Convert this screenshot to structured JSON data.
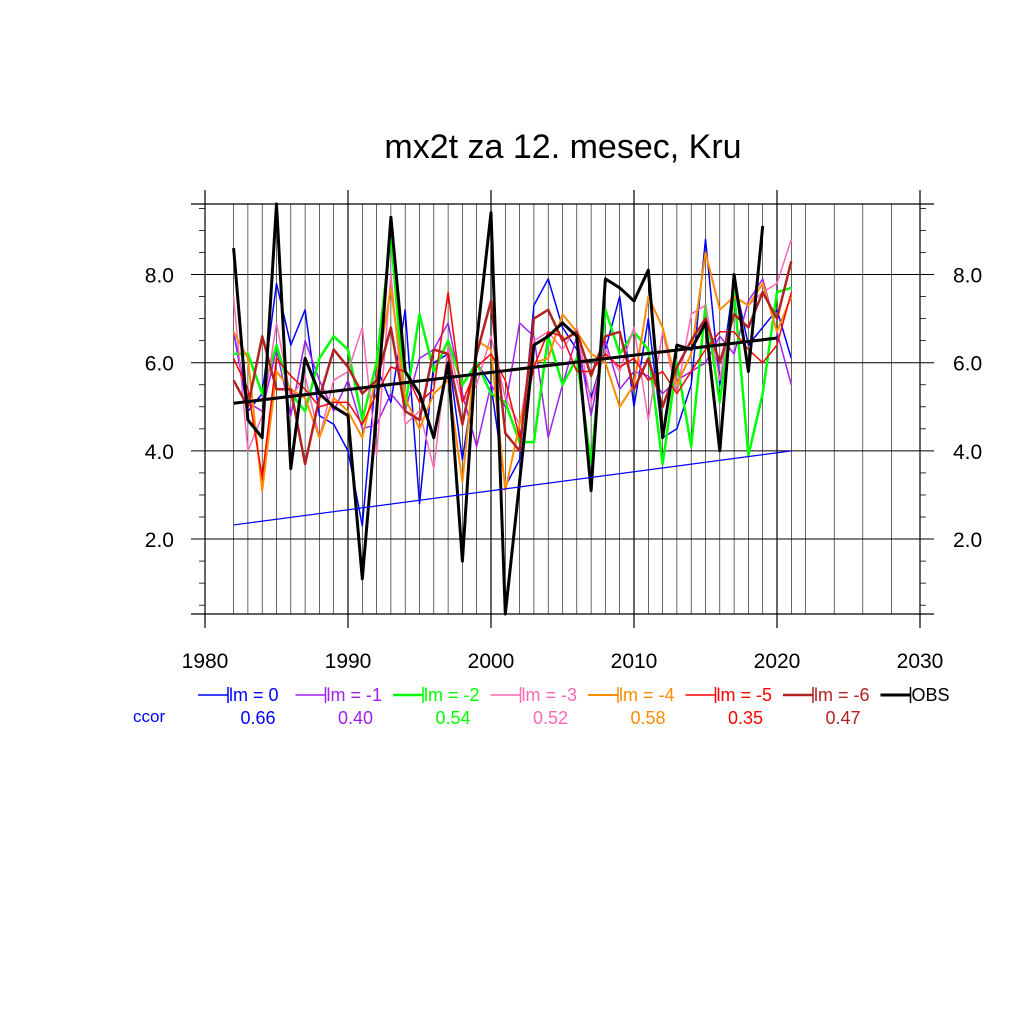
{
  "chart_data": {
    "type": "line",
    "title": "mx2t za 12. mesec, Kru",
    "xlim": [
      1980,
      2030
    ],
    "ylim": [
      0.3,
      9.6
    ],
    "xticks": [
      1980,
      1990,
      2000,
      2010,
      2020,
      2030
    ],
    "yticks": [
      2.0,
      4.0,
      6.0,
      8.0
    ],
    "ytick_labels": [
      "2.0",
      "4.0",
      "6.0",
      "8.0"
    ],
    "grid": true,
    "legend_position": "bottom",
    "ccor_label": "ccor",
    "x": [
      1982,
      1983,
      1984,
      1985,
      1986,
      1987,
      1988,
      1989,
      1990,
      1991,
      1992,
      1993,
      1994,
      1995,
      1996,
      1997,
      1998,
      1999,
      2000,
      2001,
      2002,
      2003,
      2004,
      2005,
      2006,
      2007,
      2008,
      2009,
      2010,
      2011,
      2012,
      2013,
      2014,
      2015,
      2016,
      2017,
      2018,
      2019,
      2020,
      2021
    ],
    "series": [
      {
        "name": "lm = 0",
        "ccor": "0.66",
        "color": "#0000ff",
        "width": 1.5,
        "values": [
          6.7,
          4.9,
          5.3,
          7.8,
          6.4,
          7.2,
          4.8,
          4.6,
          4.0,
          2.3,
          5.9,
          5.1,
          7.2,
          2.8,
          6.0,
          6.2,
          3.8,
          6.0,
          5.5,
          3.2,
          3.8,
          7.3,
          7.9,
          6.8,
          6.3,
          5.2,
          6.3,
          7.5,
          5.0,
          7.0,
          4.3,
          4.5,
          5.5,
          8.8,
          5.5,
          7.9,
          6.4,
          6.8,
          7.2,
          6.1
        ]
      },
      {
        "name": "lm = -1",
        "ccor": "0.40",
        "color": "#a020f0",
        "width": 1.5,
        "values": [
          6.7,
          5.1,
          4.9,
          6.3,
          4.8,
          6.5,
          5.6,
          4.9,
          5.6,
          4.5,
          4.6,
          5.3,
          4.9,
          6.1,
          6.3,
          6.9,
          5.3,
          4.1,
          5.5,
          5.0,
          6.9,
          6.6,
          4.3,
          5.5,
          6.6,
          4.8,
          6.5,
          5.4,
          5.8,
          5.7,
          5.3,
          5.6,
          5.8,
          6.0,
          6.6,
          6.2,
          7.4,
          7.9,
          6.7,
          5.5
        ]
      },
      {
        "name": "lm = -2",
        "ccor": "0.54",
        "color": "#00ff00",
        "width": 2.5,
        "values": [
          6.2,
          6.2,
          5.3,
          6.4,
          5.3,
          4.9,
          6.1,
          6.6,
          6.3,
          4.7,
          6.0,
          8.9,
          5.0,
          7.1,
          5.8,
          6.5,
          5.5,
          6.0,
          5.3,
          5.1,
          4.2,
          4.2,
          6.6,
          5.5,
          6.1,
          3.7,
          7.2,
          6.2,
          6.7,
          6.3,
          3.7,
          6.0,
          4.1,
          7.3,
          5.1,
          7.6,
          3.9,
          5.3,
          7.6,
          7.7
        ]
      },
      {
        "name": "lm = -3",
        "ccor": "0.52",
        "color": "#ff69b4",
        "width": 1.5,
        "values": [
          7.5,
          4.0,
          4.8,
          6.9,
          5.2,
          5.7,
          4.3,
          5.6,
          5.8,
          6.8,
          3.9,
          8.0,
          4.6,
          4.9,
          3.6,
          6.4,
          5.1,
          5.5,
          6.6,
          5.2,
          4.6,
          6.5,
          6.7,
          6.3,
          6.8,
          5.1,
          6.3,
          5.8,
          6.8,
          4.7,
          6.7,
          5.3,
          7.1,
          7.3,
          5.6,
          7.5,
          7.3,
          7.6,
          7.8,
          8.8
        ]
      },
      {
        "name": "lm = -4",
        "ccor": "0.58",
        "color": "#ff8c00",
        "width": 2.0,
        "values": [
          6.7,
          6.1,
          3.1,
          5.8,
          5.4,
          5.2,
          4.3,
          5.2,
          4.9,
          4.3,
          5.7,
          7.7,
          5.2,
          4.5,
          5.3,
          5.6,
          3.3,
          6.5,
          6.3,
          3.1,
          4.6,
          6.0,
          6.1,
          7.1,
          6.7,
          6.2,
          6.0,
          5.0,
          5.5,
          7.5,
          6.8,
          5.5,
          6.2,
          8.5,
          7.2,
          7.5,
          7.3,
          7.8,
          6.7,
          7.5
        ]
      },
      {
        "name": "lm = -5",
        "ccor": "0.35",
        "color": "#ff0000",
        "width": 1.5,
        "values": [
          6.1,
          5.4,
          3.4,
          6.1,
          5.7,
          5.4,
          5.0,
          5.1,
          5.1,
          4.6,
          5.3,
          5.9,
          5.8,
          5.1,
          5.4,
          7.6,
          5.1,
          5.9,
          6.2,
          5.6,
          4.3,
          5.9,
          6.7,
          6.6,
          5.8,
          5.8,
          6.2,
          5.9,
          6.1,
          5.6,
          5.8,
          5.3,
          5.8,
          6.3,
          6.7,
          6.7,
          6.3,
          6.0,
          6.4,
          7.6
        ]
      },
      {
        "name": "lm = -6",
        "ccor": "0.47",
        "color": "#b22222",
        "width": 2.5,
        "values": [
          5.6,
          5.0,
          6.6,
          5.4,
          5.4,
          3.7,
          5.2,
          6.3,
          5.9,
          5.3,
          5.6,
          6.8,
          4.9,
          4.7,
          6.3,
          6.2,
          4.6,
          6.2,
          7.4,
          4.4,
          4.0,
          7.0,
          7.2,
          6.5,
          6.7,
          5.7,
          6.6,
          6.7,
          5.4,
          6.1,
          5.0,
          5.9,
          6.5,
          7.0,
          6.0,
          7.1,
          6.8,
          7.6,
          7.0,
          8.3
        ]
      },
      {
        "name": "OBS",
        "ccor": "",
        "color": "#000000",
        "width": 3.0,
        "values": [
          8.6,
          4.7,
          4.3,
          9.6,
          3.6,
          6.1,
          5.3,
          5.0,
          4.8,
          1.1,
          4.9,
          9.3,
          5.8,
          5.3,
          4.3,
          6.0,
          1.5,
          6.5,
          9.4,
          0.3,
          3.3,
          6.4,
          6.6,
          6.9,
          6.6,
          3.1,
          7.9,
          7.7,
          7.4,
          8.1,
          4.3,
          6.4,
          6.3,
          6.9,
          4.0,
          8.0,
          5.8,
          9.1,
          null,
          null
        ]
      }
    ],
    "trend_lines": [
      {
        "name": "OBS trend",
        "color": "#000000",
        "width": 3.0,
        "x": [
          1982,
          2020
        ],
        "y": [
          5.08,
          6.56
        ]
      },
      {
        "name": "ccor trend",
        "color": "#0000ff",
        "width": 1.2,
        "x": [
          1982,
          2021
        ],
        "y": [
          2.32,
          4.0
        ]
      }
    ]
  }
}
